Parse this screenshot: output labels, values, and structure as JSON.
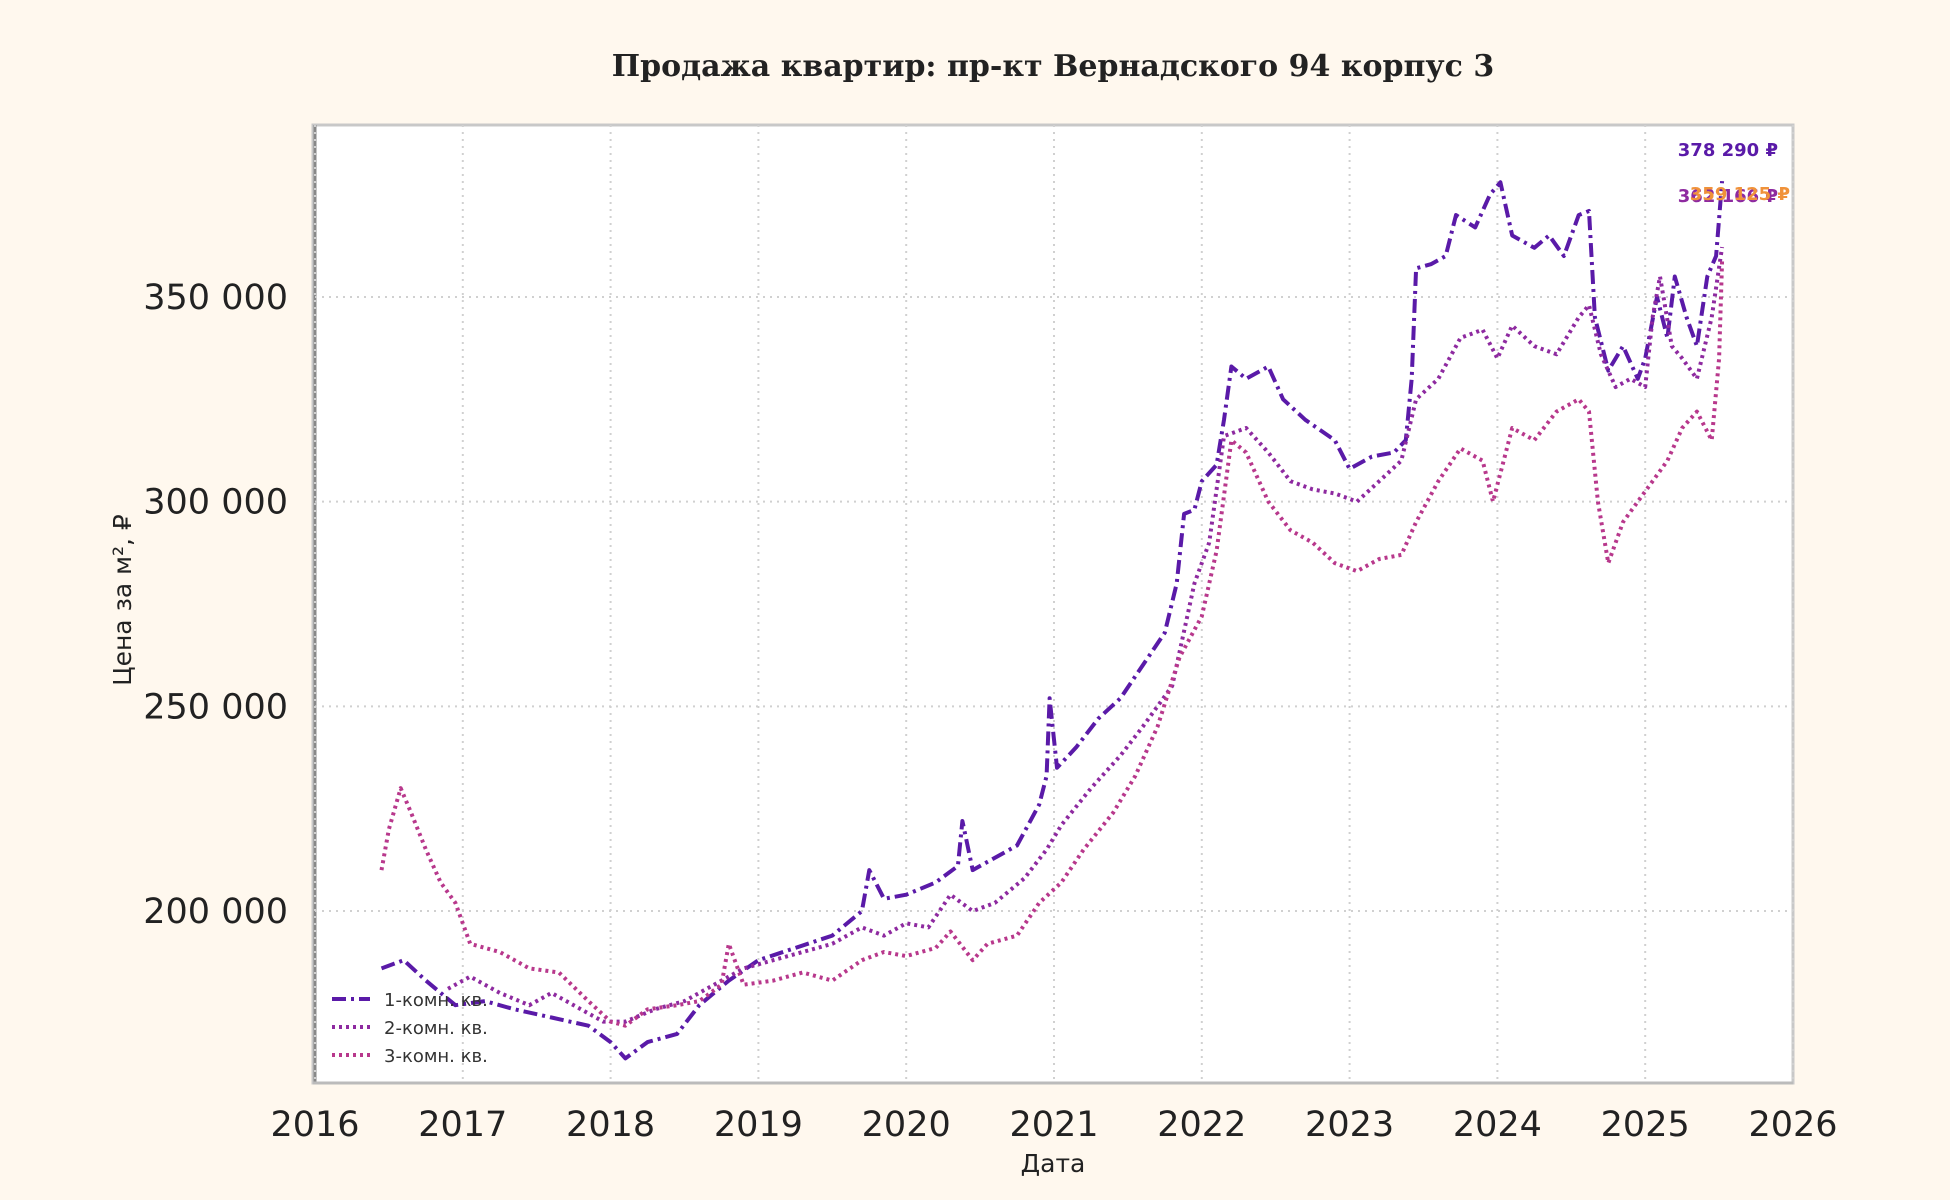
{
  "chart_data": {
    "type": "line",
    "title": "Продажа квартир: пр-кт Вернадского 94 корпус 3",
    "xlabel": "Дата",
    "ylabel": "Цена за м², ₽",
    "xlim": [
      2016,
      2026
    ],
    "ylim": [
      158000,
      392000
    ],
    "x_ticks": [
      "2016",
      "2017",
      "2018",
      "2019",
      "2020",
      "2021",
      "2022",
      "2023",
      "2024",
      "2025",
      "2026"
    ],
    "y_ticks": [
      {
        "value": 200000,
        "label": "200 000"
      },
      {
        "value": 250000,
        "label": "250 000"
      },
      {
        "value": 300000,
        "label": "300 000"
      },
      {
        "value": 350000,
        "label": "350 000"
      }
    ],
    "grid": true,
    "legend_position": "lower-left",
    "series": [
      {
        "name": "1-комн. кв.",
        "color": "#5a1aa8",
        "style": "dashdot",
        "end_label": "378 290 ₽",
        "points": [
          [
            2016.45,
            186000
          ],
          [
            2016.6,
            188000
          ],
          [
            2016.75,
            183000
          ],
          [
            2016.95,
            177000
          ],
          [
            2017.15,
            178000
          ],
          [
            2017.35,
            176000
          ],
          [
            2017.6,
            174000
          ],
          [
            2017.85,
            172000
          ],
          [
            2018.0,
            168000
          ],
          [
            2018.1,
            164000
          ],
          [
            2018.25,
            168000
          ],
          [
            2018.45,
            170000
          ],
          [
            2018.6,
            177000
          ],
          [
            2018.8,
            183000
          ],
          [
            2019.0,
            188000
          ],
          [
            2019.25,
            191000
          ],
          [
            2019.5,
            194000
          ],
          [
            2019.7,
            200000
          ],
          [
            2019.75,
            210000
          ],
          [
            2019.85,
            203000
          ],
          [
            2020.0,
            204000
          ],
          [
            2020.2,
            207000
          ],
          [
            2020.35,
            211000
          ],
          [
            2020.38,
            222000
          ],
          [
            2020.45,
            210000
          ],
          [
            2020.55,
            212000
          ],
          [
            2020.75,
            216000
          ],
          [
            2020.9,
            226000
          ],
          [
            2020.95,
            233000
          ],
          [
            2020.97,
            252000
          ],
          [
            2021.02,
            235000
          ],
          [
            2021.15,
            240000
          ],
          [
            2021.3,
            247000
          ],
          [
            2021.45,
            252000
          ],
          [
            2021.6,
            260000
          ],
          [
            2021.75,
            268000
          ],
          [
            2021.83,
            280000
          ],
          [
            2021.88,
            297000
          ],
          [
            2021.95,
            298000
          ],
          [
            2022.0,
            305000
          ],
          [
            2022.1,
            309000
          ],
          [
            2022.15,
            320000
          ],
          [
            2022.2,
            333000
          ],
          [
            2022.3,
            330000
          ],
          [
            2022.45,
            333000
          ],
          [
            2022.55,
            325000
          ],
          [
            2022.7,
            320000
          ],
          [
            2022.9,
            315000
          ],
          [
            2023.0,
            308000
          ],
          [
            2023.15,
            311000
          ],
          [
            2023.3,
            312000
          ],
          [
            2023.38,
            315000
          ],
          [
            2023.42,
            330000
          ],
          [
            2023.45,
            357000
          ],
          [
            2023.55,
            358000
          ],
          [
            2023.65,
            360000
          ],
          [
            2023.72,
            370000
          ],
          [
            2023.85,
            367000
          ],
          [
            2023.95,
            375000
          ],
          [
            2024.02,
            378000
          ],
          [
            2024.1,
            365000
          ],
          [
            2024.25,
            362000
          ],
          [
            2024.35,
            365000
          ],
          [
            2024.45,
            360000
          ],
          [
            2024.55,
            370000
          ],
          [
            2024.62,
            371000
          ],
          [
            2024.66,
            345000
          ],
          [
            2024.75,
            332000
          ],
          [
            2024.85,
            338000
          ],
          [
            2024.95,
            330000
          ],
          [
            2025.0,
            335000
          ],
          [
            2025.08,
            350000
          ],
          [
            2025.15,
            340000
          ],
          [
            2025.2,
            355000
          ],
          [
            2025.28,
            345000
          ],
          [
            2025.35,
            338000
          ],
          [
            2025.42,
            355000
          ],
          [
            2025.48,
            360000
          ],
          [
            2025.52,
            378290
          ]
        ]
      },
      {
        "name": "2-комн. кв.",
        "color": "#8e2aa0",
        "style": "dotted",
        "end_label": "362 166 ₽",
        "points": [
          [
            2016.9,
            181000
          ],
          [
            2017.05,
            184000
          ],
          [
            2017.25,
            180000
          ],
          [
            2017.45,
            177000
          ],
          [
            2017.6,
            180000
          ],
          [
            2017.8,
            176000
          ],
          [
            2017.95,
            173000
          ],
          [
            2018.1,
            173000
          ],
          [
            2018.3,
            176000
          ],
          [
            2018.5,
            178000
          ],
          [
            2018.7,
            182000
          ],
          [
            2018.9,
            186000
          ],
          [
            2019.1,
            188000
          ],
          [
            2019.3,
            190000
          ],
          [
            2019.5,
            192000
          ],
          [
            2019.7,
            196000
          ],
          [
            2019.85,
            194000
          ],
          [
            2020.0,
            197000
          ],
          [
            2020.15,
            196000
          ],
          [
            2020.3,
            204000
          ],
          [
            2020.45,
            200000
          ],
          [
            2020.6,
            202000
          ],
          [
            2020.8,
            208000
          ],
          [
            2020.95,
            215000
          ],
          [
            2021.05,
            221000
          ],
          [
            2021.25,
            230000
          ],
          [
            2021.45,
            238000
          ],
          [
            2021.6,
            245000
          ],
          [
            2021.8,
            255000
          ],
          [
            2021.95,
            280000
          ],
          [
            2022.05,
            290000
          ],
          [
            2022.15,
            316000
          ],
          [
            2022.3,
            318000
          ],
          [
            2022.45,
            312000
          ],
          [
            2022.6,
            305000
          ],
          [
            2022.75,
            303000
          ],
          [
            2022.9,
            302000
          ],
          [
            2023.05,
            300000
          ],
          [
            2023.2,
            305000
          ],
          [
            2023.35,
            310000
          ],
          [
            2023.45,
            325000
          ],
          [
            2023.6,
            330000
          ],
          [
            2023.75,
            340000
          ],
          [
            2023.9,
            342000
          ],
          [
            2024.0,
            335000
          ],
          [
            2024.1,
            343000
          ],
          [
            2024.25,
            338000
          ],
          [
            2024.4,
            336000
          ],
          [
            2024.55,
            345000
          ],
          [
            2024.62,
            348000
          ],
          [
            2024.7,
            336000
          ],
          [
            2024.8,
            328000
          ],
          [
            2024.9,
            330000
          ],
          [
            2025.0,
            328000
          ],
          [
            2025.05,
            345000
          ],
          [
            2025.1,
            355000
          ],
          [
            2025.18,
            338000
          ],
          [
            2025.25,
            335000
          ],
          [
            2025.35,
            330000
          ],
          [
            2025.45,
            345000
          ],
          [
            2025.52,
            362166
          ]
        ]
      },
      {
        "name": "3-комн. кв.",
        "color": "#b8388c",
        "style": "dotted",
        "end_label": "359 125 ₽",
        "points": [
          [
            2016.45,
            210000
          ],
          [
            2016.5,
            220000
          ],
          [
            2016.58,
            230000
          ],
          [
            2016.65,
            224000
          ],
          [
            2016.75,
            215000
          ],
          [
            2016.85,
            207000
          ],
          [
            2016.95,
            202000
          ],
          [
            2017.05,
            192000
          ],
          [
            2017.25,
            190000
          ],
          [
            2017.45,
            186000
          ],
          [
            2017.65,
            185000
          ],
          [
            2017.85,
            178000
          ],
          [
            2018.0,
            173000
          ],
          [
            2018.1,
            172000
          ],
          [
            2018.25,
            176000
          ],
          [
            2018.45,
            177000
          ],
          [
            2018.6,
            178000
          ],
          [
            2018.75,
            182000
          ],
          [
            2018.8,
            192000
          ],
          [
            2018.9,
            182000
          ],
          [
            2019.1,
            183000
          ],
          [
            2019.3,
            185000
          ],
          [
            2019.5,
            183000
          ],
          [
            2019.7,
            188000
          ],
          [
            2019.85,
            190000
          ],
          [
            2020.0,
            189000
          ],
          [
            2020.2,
            191000
          ],
          [
            2020.3,
            195000
          ],
          [
            2020.45,
            188000
          ],
          [
            2020.55,
            192000
          ],
          [
            2020.75,
            194000
          ],
          [
            2020.9,
            202000
          ],
          [
            2021.05,
            207000
          ],
          [
            2021.2,
            215000
          ],
          [
            2021.4,
            224000
          ],
          [
            2021.55,
            233000
          ],
          [
            2021.7,
            245000
          ],
          [
            2021.85,
            262000
          ],
          [
            2022.0,
            272000
          ],
          [
            2022.1,
            288000
          ],
          [
            2022.2,
            315000
          ],
          [
            2022.3,
            312000
          ],
          [
            2022.45,
            300000
          ],
          [
            2022.6,
            293000
          ],
          [
            2022.75,
            290000
          ],
          [
            2022.9,
            285000
          ],
          [
            2023.05,
            283000
          ],
          [
            2023.2,
            286000
          ],
          [
            2023.35,
            287000
          ],
          [
            2023.45,
            295000
          ],
          [
            2023.6,
            305000
          ],
          [
            2023.75,
            313000
          ],
          [
            2023.9,
            310000
          ],
          [
            2023.97,
            300000
          ],
          [
            2024.1,
            318000
          ],
          [
            2024.25,
            315000
          ],
          [
            2024.4,
            322000
          ],
          [
            2024.55,
            325000
          ],
          [
            2024.62,
            322000
          ],
          [
            2024.68,
            300000
          ],
          [
            2024.75,
            285000
          ],
          [
            2024.85,
            295000
          ],
          [
            2024.95,
            300000
          ],
          [
            2025.05,
            305000
          ],
          [
            2025.15,
            310000
          ],
          [
            2025.25,
            318000
          ],
          [
            2025.35,
            322000
          ],
          [
            2025.45,
            315000
          ],
          [
            2025.5,
            335000
          ],
          [
            2025.52,
            359125
          ]
        ]
      }
    ]
  }
}
